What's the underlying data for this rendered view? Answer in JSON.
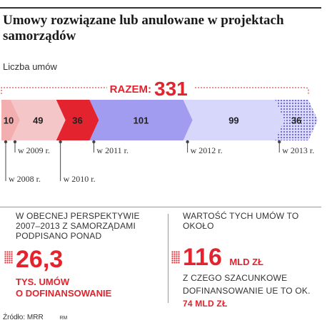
{
  "title": "Umowy rozwiązane lub anulowane w projektach samorządów",
  "subtitle": "Liczba umów",
  "chart_data": {
    "type": "bar",
    "orientation": "horizontal-stacked",
    "total_label": "RAZEM:",
    "total_value": "331",
    "categories": [
      "w 2008 r.",
      "w 2009 r.",
      "w 2010 r.",
      "w 2011 r.",
      "w 2012 r.",
      "w 2013 r."
    ],
    "values": [
      10,
      49,
      36,
      101,
      99,
      36
    ],
    "colors": [
      "#f3aeb0",
      "#f5c6c8",
      "#e3232d",
      "#a29cf0",
      "#d7d6fb",
      "#b0b0ee"
    ]
  },
  "left_panel": {
    "text": "W OBECNEJ PERSPEKTYWIE 2007–2013 Z SAMORZĄDAMI PODPISANO PONAD",
    "value": "26,3",
    "unit_line1": "TYS. UMÓW",
    "unit_line2": "O DOFINANSOWANIE"
  },
  "right_panel": {
    "text": "WARTOŚĆ TYCH UMÓW TO OKOŁO",
    "value": "116",
    "unit": "MLD ZŁ",
    "note": "Z CZEGO SZACUNKOWE DOFINANSOWANIE UE TO OK.",
    "note_value": "74 MLD ZŁ"
  },
  "footer": {
    "source": "Źródło: MRR",
    "credit": "RM"
  }
}
